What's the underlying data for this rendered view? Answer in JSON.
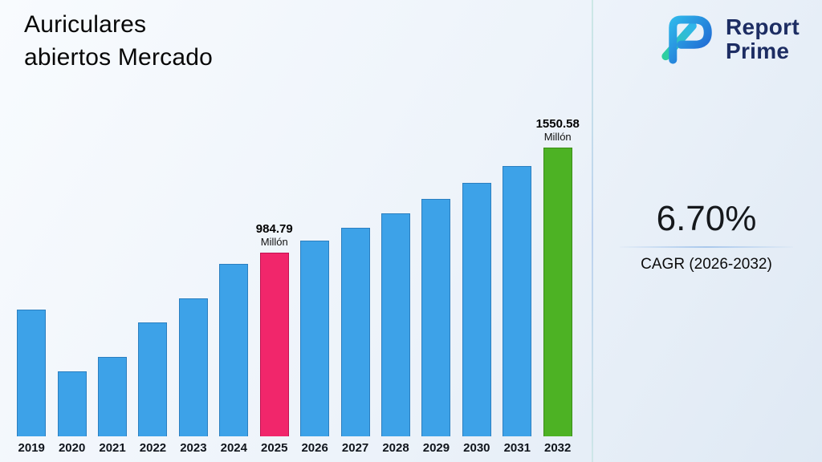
{
  "header": {
    "title_line1": "Auriculares",
    "title_line2": "abiertos Mercado"
  },
  "logo": {
    "word1": "Report",
    "word2": "Prime",
    "mark_colors": {
      "teal": "#2ecfa0",
      "light_blue": "#2fb5ea",
      "blue": "#1f5fd0",
      "text_navy": "#1d2d63"
    }
  },
  "cagr": {
    "value": "6.70%",
    "label": "CAGR (2026-2032)"
  },
  "chart_data": {
    "type": "bar",
    "title": "Auriculares abiertos Mercado",
    "xlabel": "",
    "ylabel": "",
    "unit": "Millón",
    "grid": false,
    "legend": false,
    "ylim": [
      0,
      1600
    ],
    "categories": [
      "2019",
      "2020",
      "2021",
      "2022",
      "2023",
      "2024",
      "2025",
      "2026",
      "2027",
      "2028",
      "2029",
      "2030",
      "2031",
      "2032"
    ],
    "values": [
      680,
      348,
      428,
      610,
      742,
      926,
      984.79,
      1050.77,
      1121.17,
      1196.29,
      1276.44,
      1361.96,
      1453.21,
      1550.58
    ],
    "highlight_index": 6,
    "final_index": 13,
    "bar_colors": {
      "default": "#3da2e8",
      "default_border": "#2b7fc0",
      "highlight": "#f1266b",
      "highlight_border": "#c21251",
      "final": "#4db224",
      "final_border": "#3a8d18"
    },
    "annotations": [
      {
        "category": "2025",
        "value_label": "984.79",
        "unit_label": "Millón"
      },
      {
        "category": "2032",
        "value_label": "1550.58",
        "unit_label": "Millón"
      }
    ]
  }
}
